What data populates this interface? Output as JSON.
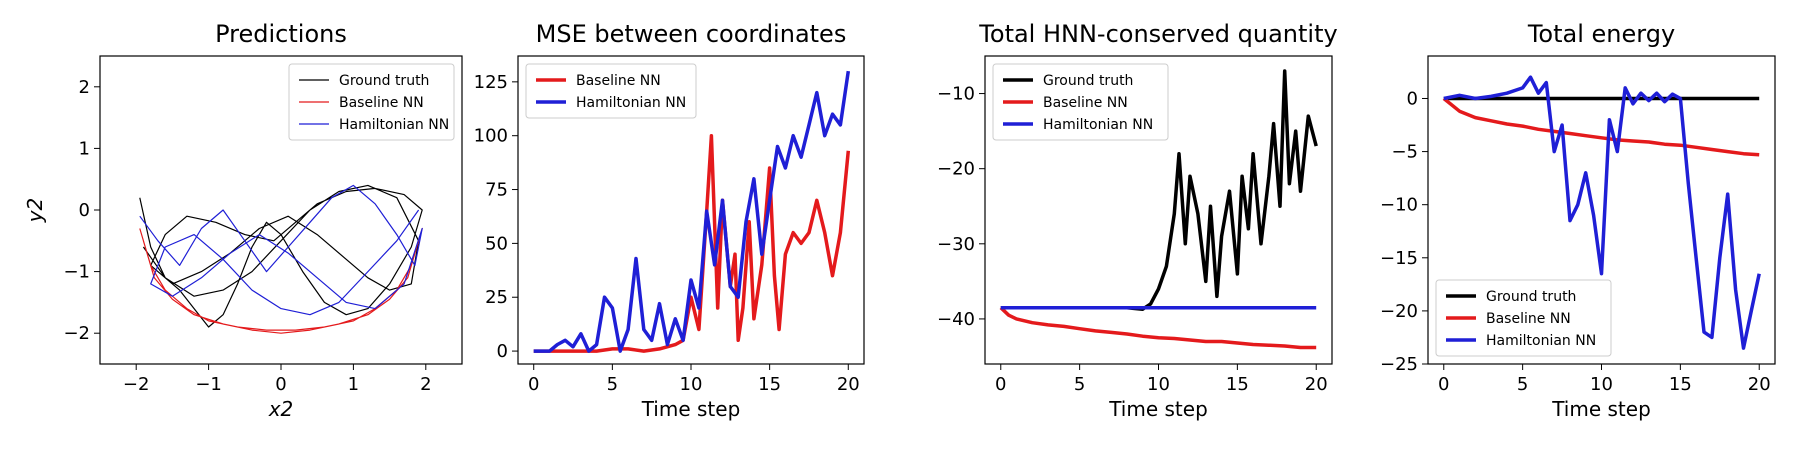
{
  "charts": [
    {
      "title": "Predictions",
      "xlabel": "x2",
      "ylabel": "y2",
      "xlim": [
        -2.5,
        2.5
      ],
      "ylim": [
        -2.5,
        2.5
      ],
      "xticks": [
        -2,
        -1,
        0,
        1,
        2
      ],
      "yticks": [
        -2,
        -1,
        0,
        1,
        2
      ],
      "legend": "top-right",
      "legend_entries": [
        "Ground truth",
        "Baseline NN",
        "Hamiltonian NN"
      ]
    },
    {
      "title": "MSE between coordinates",
      "xlabel": "Time step",
      "ylabel": "",
      "xlim": [
        -1,
        21
      ],
      "ylim": [
        -6,
        137
      ],
      "xticks": [
        0,
        5,
        10,
        15,
        20
      ],
      "yticks": [
        0,
        25,
        50,
        75,
        100,
        125
      ],
      "legend": "top-left",
      "legend_entries": [
        "Baseline NN",
        "Hamiltonian NN"
      ]
    },
    {
      "title": "Total HNN-conserved quantity",
      "xlabel": "Time step",
      "ylabel": "",
      "xlim": [
        -1,
        21
      ],
      "ylim": [
        -46,
        -5
      ],
      "xticks": [
        0,
        5,
        10,
        15,
        20
      ],
      "yticks": [
        -40,
        -30,
        -20,
        -10
      ],
      "legend": "top-left",
      "legend_entries": [
        "Ground truth",
        "Baseline NN",
        "Hamiltonian NN"
      ]
    },
    {
      "title": "Total energy",
      "xlabel": "Time step",
      "ylabel": "",
      "xlim": [
        -1,
        21
      ],
      "ylim": [
        -25,
        4
      ],
      "xticks": [
        0,
        5,
        10,
        15,
        20
      ],
      "yticks": [
        -25,
        -20,
        -15,
        -10,
        -5,
        0
      ],
      "legend": "bottom-left",
      "legend_entries": [
        "Ground truth",
        "Baseline NN",
        "Hamiltonian NN"
      ]
    }
  ],
  "chart_data": [
    {
      "type": "line",
      "title": "Predictions",
      "xlabel": "x2",
      "ylabel": "y2",
      "xlim": [
        -2.5,
        2.5
      ],
      "ylim": [
        -2.5,
        2.5
      ],
      "series": [
        {
          "name": "Ground truth",
          "color": "#000000",
          "x": [
            -1.95,
            -1.8,
            -1.6,
            -1.4,
            -1.2,
            -1.0,
            -0.8,
            -0.6,
            -0.4,
            -0.2,
            0.0,
            0.3,
            0.6,
            0.9,
            1.2,
            1.5,
            1.8,
            1.95,
            1.7,
            1.3,
            0.9,
            0.5,
            0.2,
            -0.1,
            -0.5,
            -0.9,
            -1.3,
            -1.6,
            -1.8,
            -1.5,
            -1.1,
            -0.7,
            -0.3,
            0.1,
            0.5,
            0.9,
            1.2,
            1.5,
            1.8,
            1.9,
            1.6,
            1.2,
            0.8,
            0.4,
            0.0,
            -0.4,
            -0.8,
            -1.2,
            -1.6,
            -1.9
          ],
          "y": [
            0.2,
            -0.6,
            -1.1,
            -1.3,
            -1.6,
            -1.9,
            -1.7,
            -1.2,
            -0.6,
            -0.2,
            -0.4,
            -1.0,
            -1.5,
            -1.7,
            -1.6,
            -1.2,
            -0.6,
            0.0,
            0.25,
            0.35,
            0.3,
            0.1,
            -0.2,
            -0.5,
            -0.4,
            -0.2,
            -0.1,
            -0.4,
            -0.9,
            -1.2,
            -1.0,
            -0.7,
            -0.3,
            -0.1,
            -0.4,
            -0.8,
            -1.1,
            -1.3,
            -1.2,
            -0.5,
            0.2,
            0.4,
            0.3,
            0.0,
            -0.5,
            -1.0,
            -1.3,
            -1.4,
            -1.1,
            -0.6
          ]
        },
        {
          "name": "Baseline NN",
          "color": "#e41a1c",
          "x": [
            -1.95,
            -1.8,
            -1.6,
            -1.3,
            -1.0,
            -0.6,
            -0.2,
            0.2,
            0.6,
            1.0,
            1.3,
            1.6,
            1.8,
            1.95,
            1.75,
            1.5,
            1.2,
            0.8,
            0.4,
            0.0,
            -0.4,
            -0.8,
            -1.2,
            -1.5,
            -1.75,
            -1.9
          ],
          "y": [
            -0.3,
            -0.9,
            -1.3,
            -1.6,
            -1.8,
            -1.9,
            -1.95,
            -1.95,
            -1.9,
            -1.8,
            -1.6,
            -1.3,
            -0.9,
            -0.3,
            -1.1,
            -1.45,
            -1.7,
            -1.85,
            -1.95,
            -2.0,
            -1.95,
            -1.85,
            -1.7,
            -1.45,
            -1.1,
            -0.5
          ]
        },
        {
          "name": "Hamiltonian NN",
          "color": "#1f1fd6",
          "x": [
            -1.95,
            -1.7,
            -1.4,
            -1.1,
            -0.8,
            -0.5,
            -0.2,
            0.1,
            0.4,
            0.7,
            1.0,
            1.3,
            1.6,
            1.85,
            1.95,
            1.7,
            1.3,
            0.9,
            0.5,
            0.1,
            -0.3,
            -0.7,
            -1.1,
            -1.5,
            -1.8,
            -1.6,
            -1.2,
            -0.8,
            -0.4,
            0.0,
            0.4,
            0.8,
            1.2,
            1.6,
            1.9
          ],
          "y": [
            -0.1,
            -0.5,
            -0.9,
            -0.3,
            0.0,
            -0.5,
            -1.0,
            -0.6,
            -0.2,
            0.2,
            0.4,
            0.1,
            -0.4,
            -0.9,
            -0.3,
            -1.2,
            -1.6,
            -1.5,
            -1.1,
            -0.7,
            -0.4,
            -0.7,
            -1.1,
            -1.4,
            -1.2,
            -0.6,
            -0.4,
            -0.8,
            -1.3,
            -1.6,
            -1.7,
            -1.5,
            -1.0,
            -0.5,
            0.0
          ]
        }
      ]
    },
    {
      "type": "line",
      "title": "MSE between coordinates",
      "xlabel": "Time step",
      "xlim": [
        -1,
        21
      ],
      "ylim": [
        -6,
        137
      ],
      "series": [
        {
          "name": "Baseline NN",
          "color": "#e41a1c",
          "x": [
            0,
            1,
            2,
            3,
            4,
            5,
            6,
            7,
            8,
            9,
            9.5,
            10,
            10.5,
            11,
            11.3,
            11.7,
            12,
            12.5,
            12.8,
            13,
            13.3,
            13.7,
            14,
            14.5,
            15,
            15.3,
            15.6,
            16,
            16.5,
            17,
            17.5,
            18,
            18.5,
            19,
            19.5,
            20
          ],
          "y": [
            0,
            0,
            0,
            0,
            0,
            1,
            1,
            0,
            1,
            3,
            5,
            25,
            10,
            65,
            100,
            20,
            70,
            30,
            45,
            5,
            20,
            60,
            15,
            40,
            85,
            35,
            10,
            45,
            55,
            50,
            55,
            70,
            55,
            35,
            55,
            93
          ]
        },
        {
          "name": "Hamiltonian NN",
          "color": "#1f1fd6",
          "x": [
            0,
            1,
            1.5,
            2,
            2.5,
            3,
            3.5,
            4,
            4.5,
            5,
            5.5,
            6,
            6.5,
            7,
            7.5,
            8,
            8.5,
            9,
            9.5,
            10,
            10.5,
            11,
            11.5,
            12,
            12.5,
            13,
            13.5,
            14,
            14.5,
            15,
            15.5,
            16,
            16.5,
            17,
            17.5,
            18,
            18.5,
            19,
            19.5,
            20
          ],
          "y": [
            0,
            0,
            3,
            5,
            2,
            8,
            0,
            3,
            25,
            20,
            0,
            10,
            43,
            10,
            5,
            22,
            3,
            15,
            5,
            33,
            20,
            65,
            40,
            70,
            30,
            25,
            60,
            80,
            45,
            70,
            95,
            85,
            100,
            90,
            105,
            120,
            100,
            110,
            105,
            130
          ]
        }
      ]
    },
    {
      "type": "line",
      "title": "Total HNN-conserved quantity",
      "xlabel": "Time step",
      "xlim": [
        -1,
        21
      ],
      "ylim": [
        -46,
        -5
      ],
      "series": [
        {
          "name": "Ground truth",
          "color": "#000000",
          "x": [
            0,
            2,
            4,
            6,
            8,
            9,
            9.5,
            10,
            10.5,
            11,
            11.3,
            11.7,
            12,
            12.5,
            13,
            13.3,
            13.7,
            14,
            14.5,
            15,
            15.3,
            15.7,
            16,
            16.5,
            17,
            17.3,
            17.7,
            18,
            18.3,
            18.7,
            19,
            19.5,
            20
          ],
          "y": [
            -38.5,
            -38.5,
            -38.5,
            -38.5,
            -38.5,
            -38.7,
            -38,
            -36,
            -33,
            -26,
            -18,
            -30,
            -21,
            -26,
            -35,
            -25,
            -37,
            -29,
            -23,
            -34,
            -21,
            -28,
            -18,
            -30,
            -21,
            -14,
            -25,
            -7,
            -22,
            -15,
            -23,
            -13,
            -17
          ]
        },
        {
          "name": "Baseline NN",
          "color": "#e41a1c",
          "x": [
            0,
            0.5,
            1,
            2,
            3,
            4,
            5,
            6,
            7,
            8,
            9,
            10,
            11,
            12,
            13,
            14,
            15,
            16,
            17,
            18,
            19,
            20
          ],
          "y": [
            -38.5,
            -39.5,
            -40,
            -40.5,
            -40.8,
            -41,
            -41.3,
            -41.6,
            -41.8,
            -42,
            -42.3,
            -42.5,
            -42.6,
            -42.8,
            -43,
            -43,
            -43.2,
            -43.4,
            -43.5,
            -43.6,
            -43.8,
            -43.8
          ]
        },
        {
          "name": "Hamiltonian NN",
          "color": "#1f1fd6",
          "x": [
            0,
            2,
            4,
            6,
            8,
            10,
            12,
            14,
            16,
            18,
            20
          ],
          "y": [
            -38.5,
            -38.5,
            -38.5,
            -38.5,
            -38.5,
            -38.5,
            -38.5,
            -38.5,
            -38.5,
            -38.5,
            -38.5
          ]
        }
      ]
    },
    {
      "type": "line",
      "title": "Total energy",
      "xlabel": "Time step",
      "xlim": [
        -1,
        21
      ],
      "ylim": [
        -25,
        4
      ],
      "series": [
        {
          "name": "Ground truth",
          "color": "#000000",
          "x": [
            0,
            20
          ],
          "y": [
            0,
            0
          ]
        },
        {
          "name": "Baseline NN",
          "color": "#e41a1c",
          "x": [
            0,
            1,
            2,
            3,
            4,
            5,
            6,
            7,
            8,
            9,
            10,
            11,
            12,
            13,
            14,
            15,
            16,
            17,
            18,
            19,
            20
          ],
          "y": [
            0,
            -1.2,
            -1.8,
            -2.1,
            -2.4,
            -2.6,
            -2.9,
            -3.1,
            -3.3,
            -3.5,
            -3.7,
            -3.9,
            -4.0,
            -4.1,
            -4.3,
            -4.4,
            -4.6,
            -4.8,
            -5.0,
            -5.2,
            -5.3
          ]
        },
        {
          "name": "Hamiltonian NN",
          "color": "#1f1fd6",
          "x": [
            0,
            1,
            2,
            3,
            4,
            5,
            5.5,
            6,
            6.5,
            7,
            7.5,
            8,
            8.5,
            9,
            9.5,
            10,
            10.5,
            11,
            11.5,
            12,
            12.5,
            13,
            13.5,
            14,
            14.5,
            15,
            15.5,
            16,
            16.5,
            17,
            17.5,
            18,
            18.5,
            19,
            19.5,
            20
          ],
          "y": [
            0,
            0.3,
            0,
            0.2,
            0.5,
            1.0,
            2.0,
            0.5,
            1.5,
            -5.0,
            -2.5,
            -11.5,
            -10.0,
            -7.0,
            -11.0,
            -16.5,
            -2.0,
            -5.0,
            1.0,
            -0.5,
            0.5,
            -0.2,
            0.5,
            -0.3,
            0.4,
            0.0,
            -8.0,
            -15.0,
            -22.0,
            -22.5,
            -15.0,
            -9.0,
            -18.0,
            -23.5,
            -20.0,
            -16.5
          ]
        }
      ]
    }
  ]
}
